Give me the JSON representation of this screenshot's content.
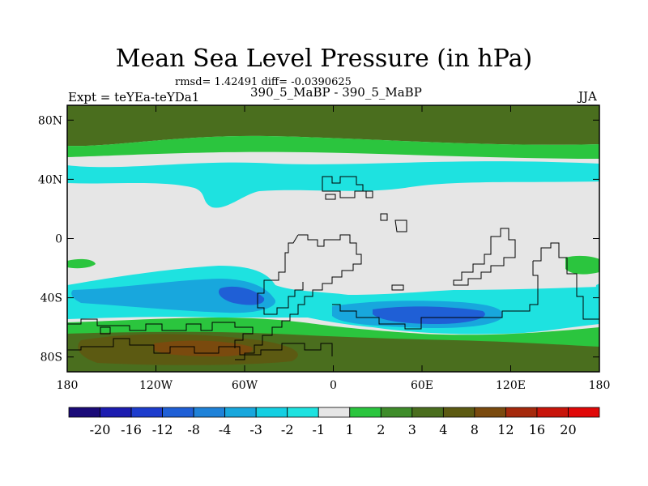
{
  "title": "Mean Sea Level Pressure (in hPa)",
  "stats_text": "rmsd= 1.42491 diff= -0.0390625",
  "expt_label": "Expt = teYEa-teYDa1",
  "subtitle": "390_5_MaBP - 390_5_MaBP",
  "season": "JJA",
  "chart_data": {
    "type": "heatmap",
    "title": "Mean Sea Level Pressure (in hPa)",
    "units": "hPa",
    "projection": "cylindrical equidistant",
    "x_range": [
      -180,
      180
    ],
    "y_range": [
      -90,
      90
    ],
    "x_ticks": [
      {
        "value": -180,
        "label": "180"
      },
      {
        "value": -120,
        "label": "120W"
      },
      {
        "value": -60,
        "label": "60W"
      },
      {
        "value": 0,
        "label": "0"
      },
      {
        "value": 60,
        "label": "60E"
      },
      {
        "value": 120,
        "label": "120E"
      },
      {
        "value": 180,
        "label": "180"
      }
    ],
    "y_ticks": [
      {
        "value": 80,
        "label": "80N"
      },
      {
        "value": 40,
        "label": "40N"
      },
      {
        "value": 0,
        "label": "0"
      },
      {
        "value": -40,
        "label": "40S"
      },
      {
        "value": -80,
        "label": "80S"
      }
    ],
    "colorbar": {
      "levels": [
        "-20",
        "-16",
        "-12",
        "-8",
        "-4",
        "-3",
        "-2",
        "-1",
        "1",
        "2",
        "3",
        "4",
        "8",
        "12",
        "16",
        "20"
      ],
      "colors": [
        "#1a0a78",
        "#1c1cb0",
        "#1d3ccd",
        "#1f5fd6",
        "#1f82d8",
        "#18a7dd",
        "#14cfe2",
        "#1ee2e0",
        "#e6e6e6",
        "#2bc53e",
        "#3e8c2a",
        "#4a6e1e",
        "#5c5a12",
        "#7a4a0e",
        "#a5290c",
        "#c8140a",
        "#e00808"
      ]
    },
    "regions": [
      {
        "name": "arctic-positive-band",
        "range_hPa": "3 to 8",
        "lat_range": [
          60,
          90
        ]
      },
      {
        "name": "northern-midlatitude-negative-band",
        "range_hPa": "-2 to -1",
        "lat_range": [
          20,
          50
        ]
      },
      {
        "name": "tropics-near-zero",
        "range_hPa": "-1 to 1",
        "lat_range": [
          -25,
          20
        ]
      },
      {
        "name": "southern-midlatitude-negative-band",
        "range_hPa": "-4 to -1",
        "lat_range": [
          -65,
          -30
        ]
      },
      {
        "name": "antarctic-positive-band",
        "range_hPa": "3 to 8",
        "lat_range": [
          -90,
          -60
        ]
      }
    ]
  }
}
